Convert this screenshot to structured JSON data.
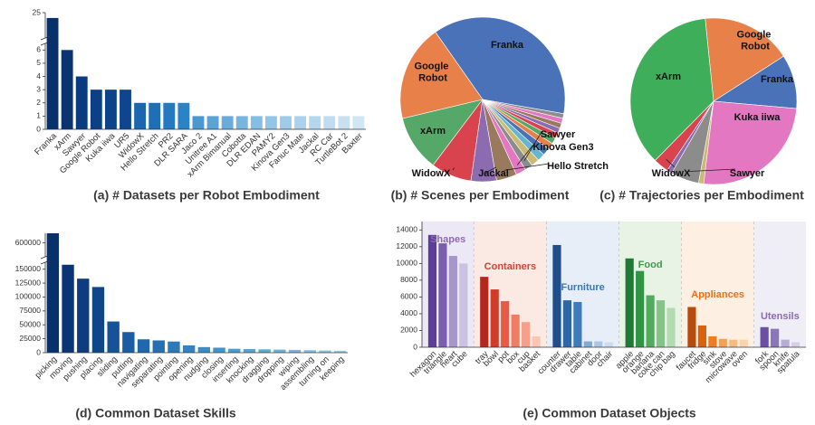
{
  "chart_data": [
    {
      "type": "bar",
      "title": "(a) # Datasets per Robot Embodiment",
      "categories": [
        "Franka",
        "xArm",
        "Sawyer",
        "Google Robot",
        "Kuka iiwa",
        "UR5",
        "WidowX",
        "Hello Stretch",
        "PR2",
        "DLR SARA",
        "Jaco 2",
        "Unitree A1",
        "xArm Bimanual",
        "Cobotta",
        "DLR EDAN",
        "PAMY2",
        "Kinova Gen3",
        "Fanuc Mate",
        "Jackal",
        "RC Car",
        "TurtleBot 2",
        "Baxter"
      ],
      "values": [
        23,
        6,
        4,
        3,
        3,
        3,
        2,
        2,
        2,
        2,
        1,
        1,
        1,
        1,
        1,
        1,
        1,
        1,
        1,
        1,
        1,
        1
      ],
      "colors": [
        "#08306b",
        "#0a336f",
        "#0b3a7e",
        "#0d3f86",
        "#0e4289",
        "#0f4590",
        "#1a66b0",
        "#1f6fb8",
        "#2479c0",
        "#2a83c6",
        "#4a98d0",
        "#5aa3d6",
        "#69acda",
        "#78b5de",
        "#86bde2",
        "#93c5e6",
        "#9fcbe9",
        "#abd2ec",
        "#b5d7ee",
        "#bfdcf0",
        "#c8e1f2",
        "#d0e6f4"
      ],
      "ylim": [
        0,
        25
      ],
      "yticks": [
        0,
        1,
        2,
        3,
        4,
        5,
        6,
        25
      ]
    },
    {
      "type": "pie",
      "title": "(b) # Scenes per Embodiment",
      "categories": [
        "Franka",
        "Google Robot",
        "xArm",
        "WidowX",
        "Jackal",
        "Hello Stretch",
        "Kinova Gen3",
        "Sawyer",
        null,
        null,
        null,
        null,
        null,
        null,
        null,
        null,
        null,
        null
      ],
      "values": [
        37.5,
        19,
        11,
        8,
        5,
        4,
        2,
        1.5,
        1.6,
        1.5,
        1.4,
        1.3,
        1.2,
        1.1,
        1.0,
        1.0,
        1.0,
        0.9
      ],
      "colors": [
        "#4a72b8",
        "#e8804a",
        "#55a868",
        "#d9434e",
        "#8c6bb1",
        "#9a7a5e",
        "#e377c2",
        "#8c8c8c",
        "#ccb974",
        "#64b5cd",
        "#4a72b8",
        "#e8804a",
        "#55a868",
        "#d9434e",
        "#8c6bb1",
        "#9a7a5e",
        "#e377c2",
        "#8c8c8c"
      ]
    },
    {
      "type": "pie",
      "title": "(c) # Trajectories per Embodiment",
      "categories": [
        "Franka",
        "Google Robot",
        "xArm",
        "WidowX",
        null,
        "Sawyer",
        null,
        "Kuka iiwa"
      ],
      "values": [
        10.5,
        17.5,
        36,
        3,
        1,
        5.5,
        1,
        25.5
      ],
      "colors": [
        "#4a72b8",
        "#e8804a",
        "#3fae5a",
        "#d9434e",
        "#8c6bb1",
        "#8c8c8c",
        "#ccb974",
        "#e377c2"
      ]
    },
    {
      "type": "bar",
      "title": "(d) Common Dataset Skills",
      "categories": [
        "picking",
        "moving",
        "pushing",
        "placing",
        "sliding",
        "putting",
        "navigating",
        "separating",
        "pointing",
        "opening",
        "nudging",
        "closing",
        "inserting",
        "knocking",
        "dragging",
        "dropping",
        "wiping",
        "assembling",
        "turning on",
        "keeping"
      ],
      "values": [
        650000,
        158000,
        133000,
        118000,
        56000,
        37000,
        24000,
        22000,
        20000,
        13000,
        10000,
        9000,
        7000,
        6500,
        6000,
        5500,
        5000,
        4500,
        4000,
        3500
      ],
      "colors": [
        "#08306b",
        "#0a3473",
        "#0d3c80",
        "#0f4589",
        "#155298",
        "#1a5da4",
        "#2067ae",
        "#2570b5",
        "#2b7abd",
        "#3283c3",
        "#3a8cc8",
        "#4394cc",
        "#4c9cd0",
        "#56a3d4",
        "#61aad8",
        "#6cb1db",
        "#78b8de",
        "#84bfe2",
        "#90c5e5",
        "#9dcbe8"
      ],
      "ylim": [
        0,
        650000
      ],
      "yticks": [
        0,
        25000,
        50000,
        75000,
        100000,
        125000,
        150000,
        600000
      ]
    },
    {
      "type": "bar",
      "title": "(e) Common Dataset Objects",
      "ylim": [
        0,
        15000
      ],
      "yticks": [
        0,
        2000,
        4000,
        6000,
        8000,
        10000,
        12000,
        14000
      ],
      "groups": [
        {
          "name": "Shapes",
          "background": "#ece8f5",
          "label_color": "#8c6bb1",
          "categories": [
            "hexagon",
            "triangle",
            "heart",
            "cube"
          ],
          "values": [
            13400,
            12400,
            10900,
            10000
          ],
          "colors": [
            "#5c3d99",
            "#7a5fb0",
            "#a796cc",
            "#cbc1e2"
          ]
        },
        {
          "name": "Containers",
          "background": "#fbeae3",
          "label_color": "#d0443a",
          "categories": [
            "tray",
            "bowl",
            "pot",
            "box",
            "cup",
            "basket"
          ],
          "values": [
            8400,
            6900,
            5500,
            3900,
            3000,
            1300
          ],
          "colors": [
            "#b3271f",
            "#d03b2a",
            "#e85a43",
            "#f07d62",
            "#f6a08a",
            "#fbc4b3"
          ]
        },
        {
          "name": "Furniture",
          "background": "#e7eef7",
          "label_color": "#3a78b5",
          "categories": [
            "counter",
            "drawer",
            "table",
            "cabinet",
            "door",
            "chair"
          ],
          "values": [
            12200,
            5600,
            5400,
            700,
            700,
            600
          ],
          "colors": [
            "#1f4e8a",
            "#2f66a6",
            "#3e7bbd",
            "#7fa9d6",
            "#a9c6e6",
            "#c9dcf0"
          ]
        },
        {
          "name": "Food",
          "background": "#e8f3e6",
          "label_color": "#3f9a4a",
          "categories": [
            "apple",
            "orange",
            "banana",
            "coke can",
            "chip bag"
          ],
          "values": [
            10600,
            9100,
            6200,
            5600,
            4700
          ],
          "colors": [
            "#1e7a34",
            "#2f9444",
            "#52aa5f",
            "#84c487",
            "#b2dcb0"
          ]
        },
        {
          "name": "Appliances",
          "background": "#fdf0e2",
          "label_color": "#e8701a",
          "categories": [
            "faucet",
            "fridge",
            "sink",
            "stove",
            "microwave",
            "oven"
          ],
          "values": [
            4800,
            2600,
            1300,
            1000,
            900,
            900
          ],
          "colors": [
            "#b84a0c",
            "#d8620f",
            "#f07c22",
            "#f5a052",
            "#f8bb7f",
            "#fbd3aa"
          ]
        },
        {
          "name": "Utensils",
          "background": "#efedf5",
          "label_color": "#8c6bb1",
          "categories": [
            "fork",
            "spoon",
            "knife",
            "spatula"
          ],
          "values": [
            2400,
            2200,
            900,
            600
          ],
          "colors": [
            "#6a4fa5",
            "#8c76ba",
            "#b8abd6",
            "#d6cfe7"
          ]
        }
      ]
    }
  ]
}
